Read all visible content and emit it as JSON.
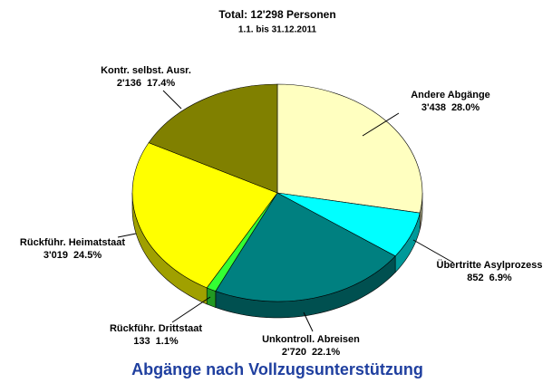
{
  "chart_data": {
    "type": "pie",
    "title": "Total: 12'298 Personen",
    "subtitle": "1.1. bis 31.12.2011",
    "caption": "Abgänge nach Vollzugsunterstützung",
    "categories": [
      "Andere Abgänge",
      "Übertritte Asylprozess",
      "Unkontroll. Abreisen",
      "Rückführ. Drittstaat",
      "Rückführ. Heimatstaat",
      "Kontr. selbst. Ausr."
    ],
    "values": [
      3438,
      852,
      2720,
      133,
      3019,
      2136
    ],
    "value_labels": [
      "3'438",
      "852",
      "2'720",
      "133",
      "3'019",
      "2'136"
    ],
    "percents": [
      28.0,
      6.9,
      22.1,
      1.1,
      24.5,
      17.4
    ],
    "percent_labels": [
      "28.0%",
      "6.9%",
      "22.1%",
      "1.1%",
      "24.5%",
      "17.4%"
    ],
    "colors": [
      "#FFFFC0",
      "#00FFFF",
      "#008080",
      "#33FF33",
      "#FFFF00",
      "#808000"
    ],
    "side_colors": [
      "#A0A080",
      "#009999",
      "#005050",
      "#229922",
      "#A0A000",
      "#505000"
    ]
  }
}
